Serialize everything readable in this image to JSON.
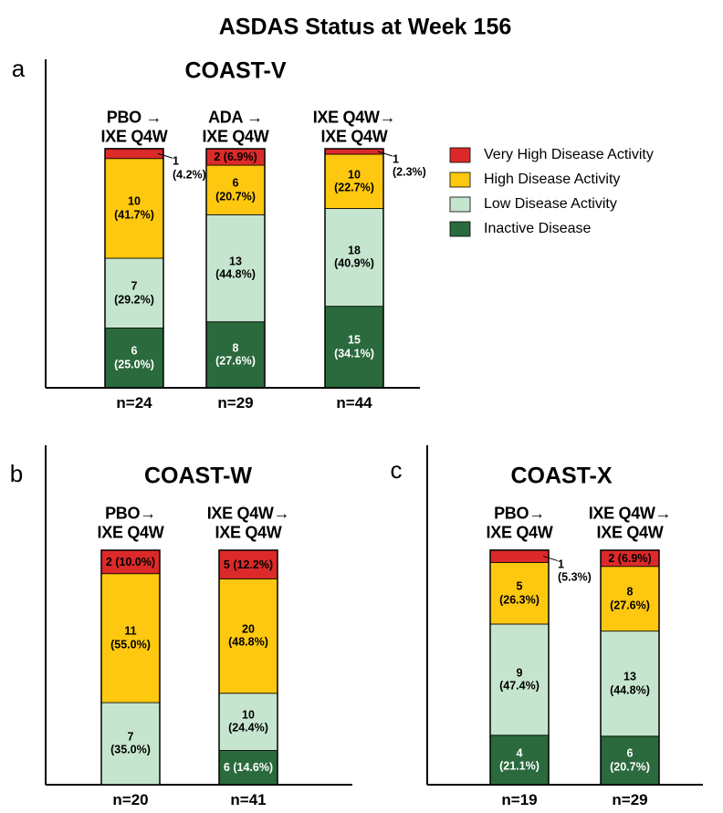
{
  "title": "ASDAS Status at Week 156",
  "legend": {
    "entries": [
      {
        "name": "Inactive Disease",
        "color": "#2a6a3c"
      },
      {
        "name": "Low Disease Activity",
        "color": "#c6e5cf"
      },
      {
        "name": "High Disease Activity",
        "color": "#fdc80f"
      },
      {
        "name": "Very High Disease Activity",
        "color": "#dc2a2a"
      }
    ]
  },
  "chart_data": [
    {
      "type": "stacked_bar",
      "panel": "a",
      "title": "COAST-V",
      "categories": [
        "PBO →\nIXE Q4W",
        "ADA →\nIXE Q4W",
        "IXE Q4W→\nIXE Q4W"
      ],
      "n_labels": [
        "n=24",
        "n=29",
        "n=44"
      ],
      "ylim": [
        0,
        100
      ],
      "series": [
        {
          "values": [
            25.0,
            27.6,
            34.1
          ],
          "value_labels": [
            "6\n(25.0%)",
            "8\n(27.6%)",
            "15\n(34.1%)"
          ]
        },
        {
          "values": [
            29.2,
            44.8,
            40.9
          ],
          "value_labels": [
            "7\n(29.2%)",
            "13\n(44.8%)",
            "18\n(40.9%)"
          ]
        },
        {
          "values": [
            41.7,
            20.7,
            22.7
          ],
          "value_labels": [
            "10\n(41.7%)",
            "6\n(20.7%)",
            "10\n(22.7%)"
          ]
        },
        {
          "values": [
            4.2,
            6.9,
            2.3
          ],
          "value_labels": [
            "1\n(4.2%)",
            "2 (6.9%)",
            "1\n(2.3%)"
          ]
        }
      ]
    },
    {
      "type": "stacked_bar",
      "panel": "b",
      "title": "COAST-W",
      "categories": [
        "PBO→\nIXE Q4W",
        "IXE Q4W→\nIXE Q4W"
      ],
      "n_labels": [
        "n=20",
        "n=41"
      ],
      "ylim": [
        0,
        100
      ],
      "series": [
        {
          "values": [
            null,
            14.6
          ],
          "value_labels": [
            null,
            "6 (14.6%)"
          ]
        },
        {
          "values": [
            35.0,
            24.4
          ],
          "value_labels": [
            "7\n(35.0%)",
            "10\n(24.4%)"
          ]
        },
        {
          "values": [
            55.0,
            48.8
          ],
          "value_labels": [
            "11\n(55.0%)",
            "20\n(48.8%)"
          ]
        },
        {
          "values": [
            10.0,
            12.2
          ],
          "value_labels": [
            "2 (10.0%)",
            "5 (12.2%)"
          ]
        }
      ]
    },
    {
      "type": "stacked_bar",
      "panel": "c",
      "title": "COAST-X",
      "categories": [
        "PBO→\nIXE Q4W",
        "IXE Q4W→\nIXE Q4W"
      ],
      "n_labels": [
        "n=19",
        "n=29"
      ],
      "ylim": [
        0,
        100
      ],
      "series": [
        {
          "values": [
            21.1,
            20.7
          ],
          "value_labels": [
            "4\n(21.1%)",
            "6\n(20.7%)"
          ]
        },
        {
          "values": [
            47.4,
            44.8
          ],
          "value_labels": [
            "9\n(47.4%)",
            "13\n(44.8%)"
          ]
        },
        {
          "values": [
            26.3,
            27.6
          ],
          "value_labels": [
            "5\n(26.3%)",
            "8\n(27.6%)"
          ]
        },
        {
          "values": [
            5.3,
            6.9
          ],
          "value_labels": [
            "1\n(5.3%)",
            "2 (6.9%)"
          ]
        }
      ]
    }
  ]
}
